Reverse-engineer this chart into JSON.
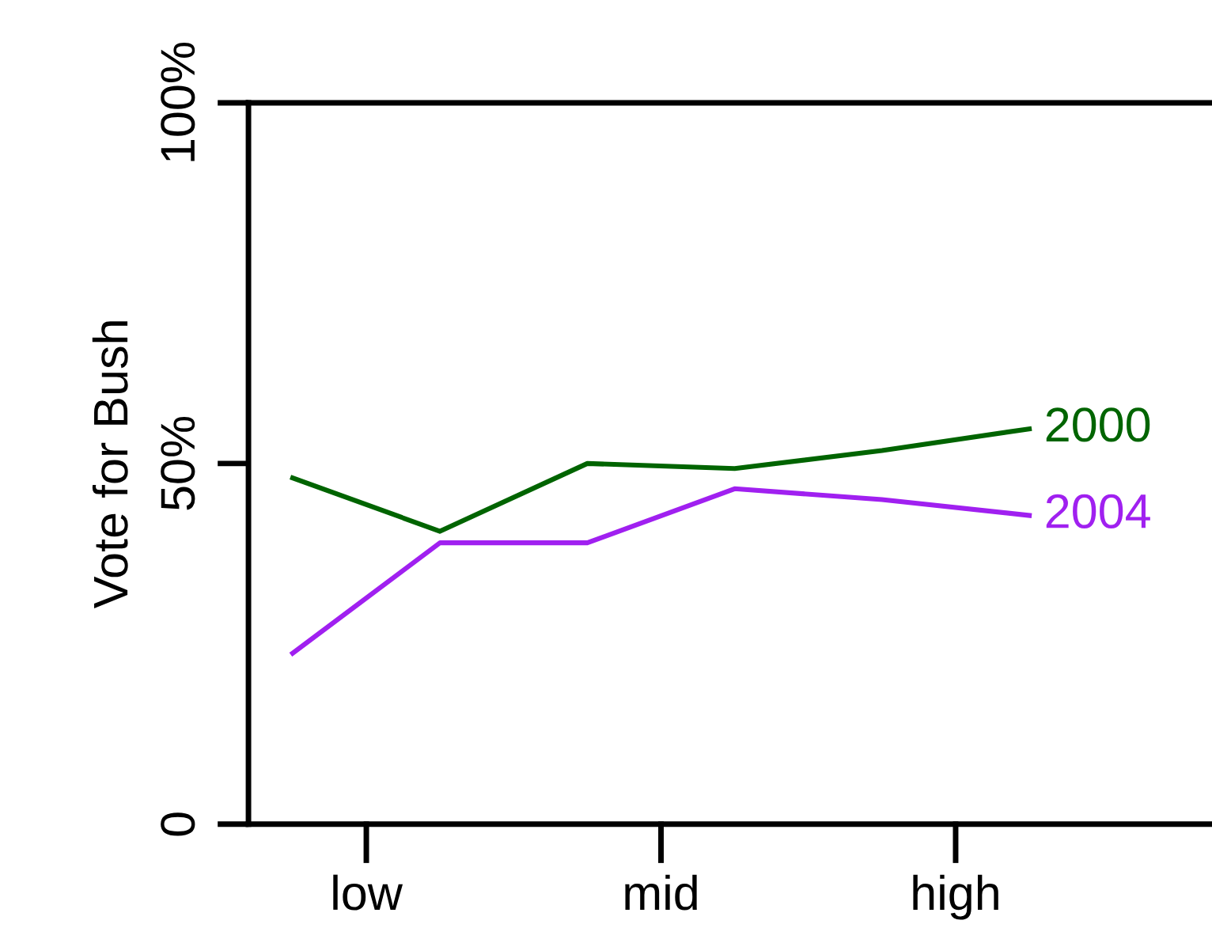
{
  "chart_data": {
    "type": "line",
    "ylabel": "Vote for Bush",
    "categories": [
      null,
      null,
      null,
      null,
      null,
      null
    ],
    "annotations": [
      "low",
      "mid",
      "high"
    ],
    "series": [
      {
        "name": "2000",
        "color": "#006400",
        "values": [
          48,
          40.6,
          50,
          49.3,
          51.8,
          54.8
        ]
      },
      {
        "name": "2004",
        "color": "#a020f0",
        "values": [
          23.7,
          39,
          39,
          46.5,
          45,
          42.8
        ]
      }
    ],
    "ylim": [
      0,
      100
    ],
    "yticks": [
      {
        "value": 0,
        "label": "0"
      },
      {
        "value": 50,
        "label": "50%"
      },
      {
        "value": 100,
        "label": "100%"
      }
    ],
    "grid": false,
    "marker": "none",
    "line_style": "solid"
  }
}
